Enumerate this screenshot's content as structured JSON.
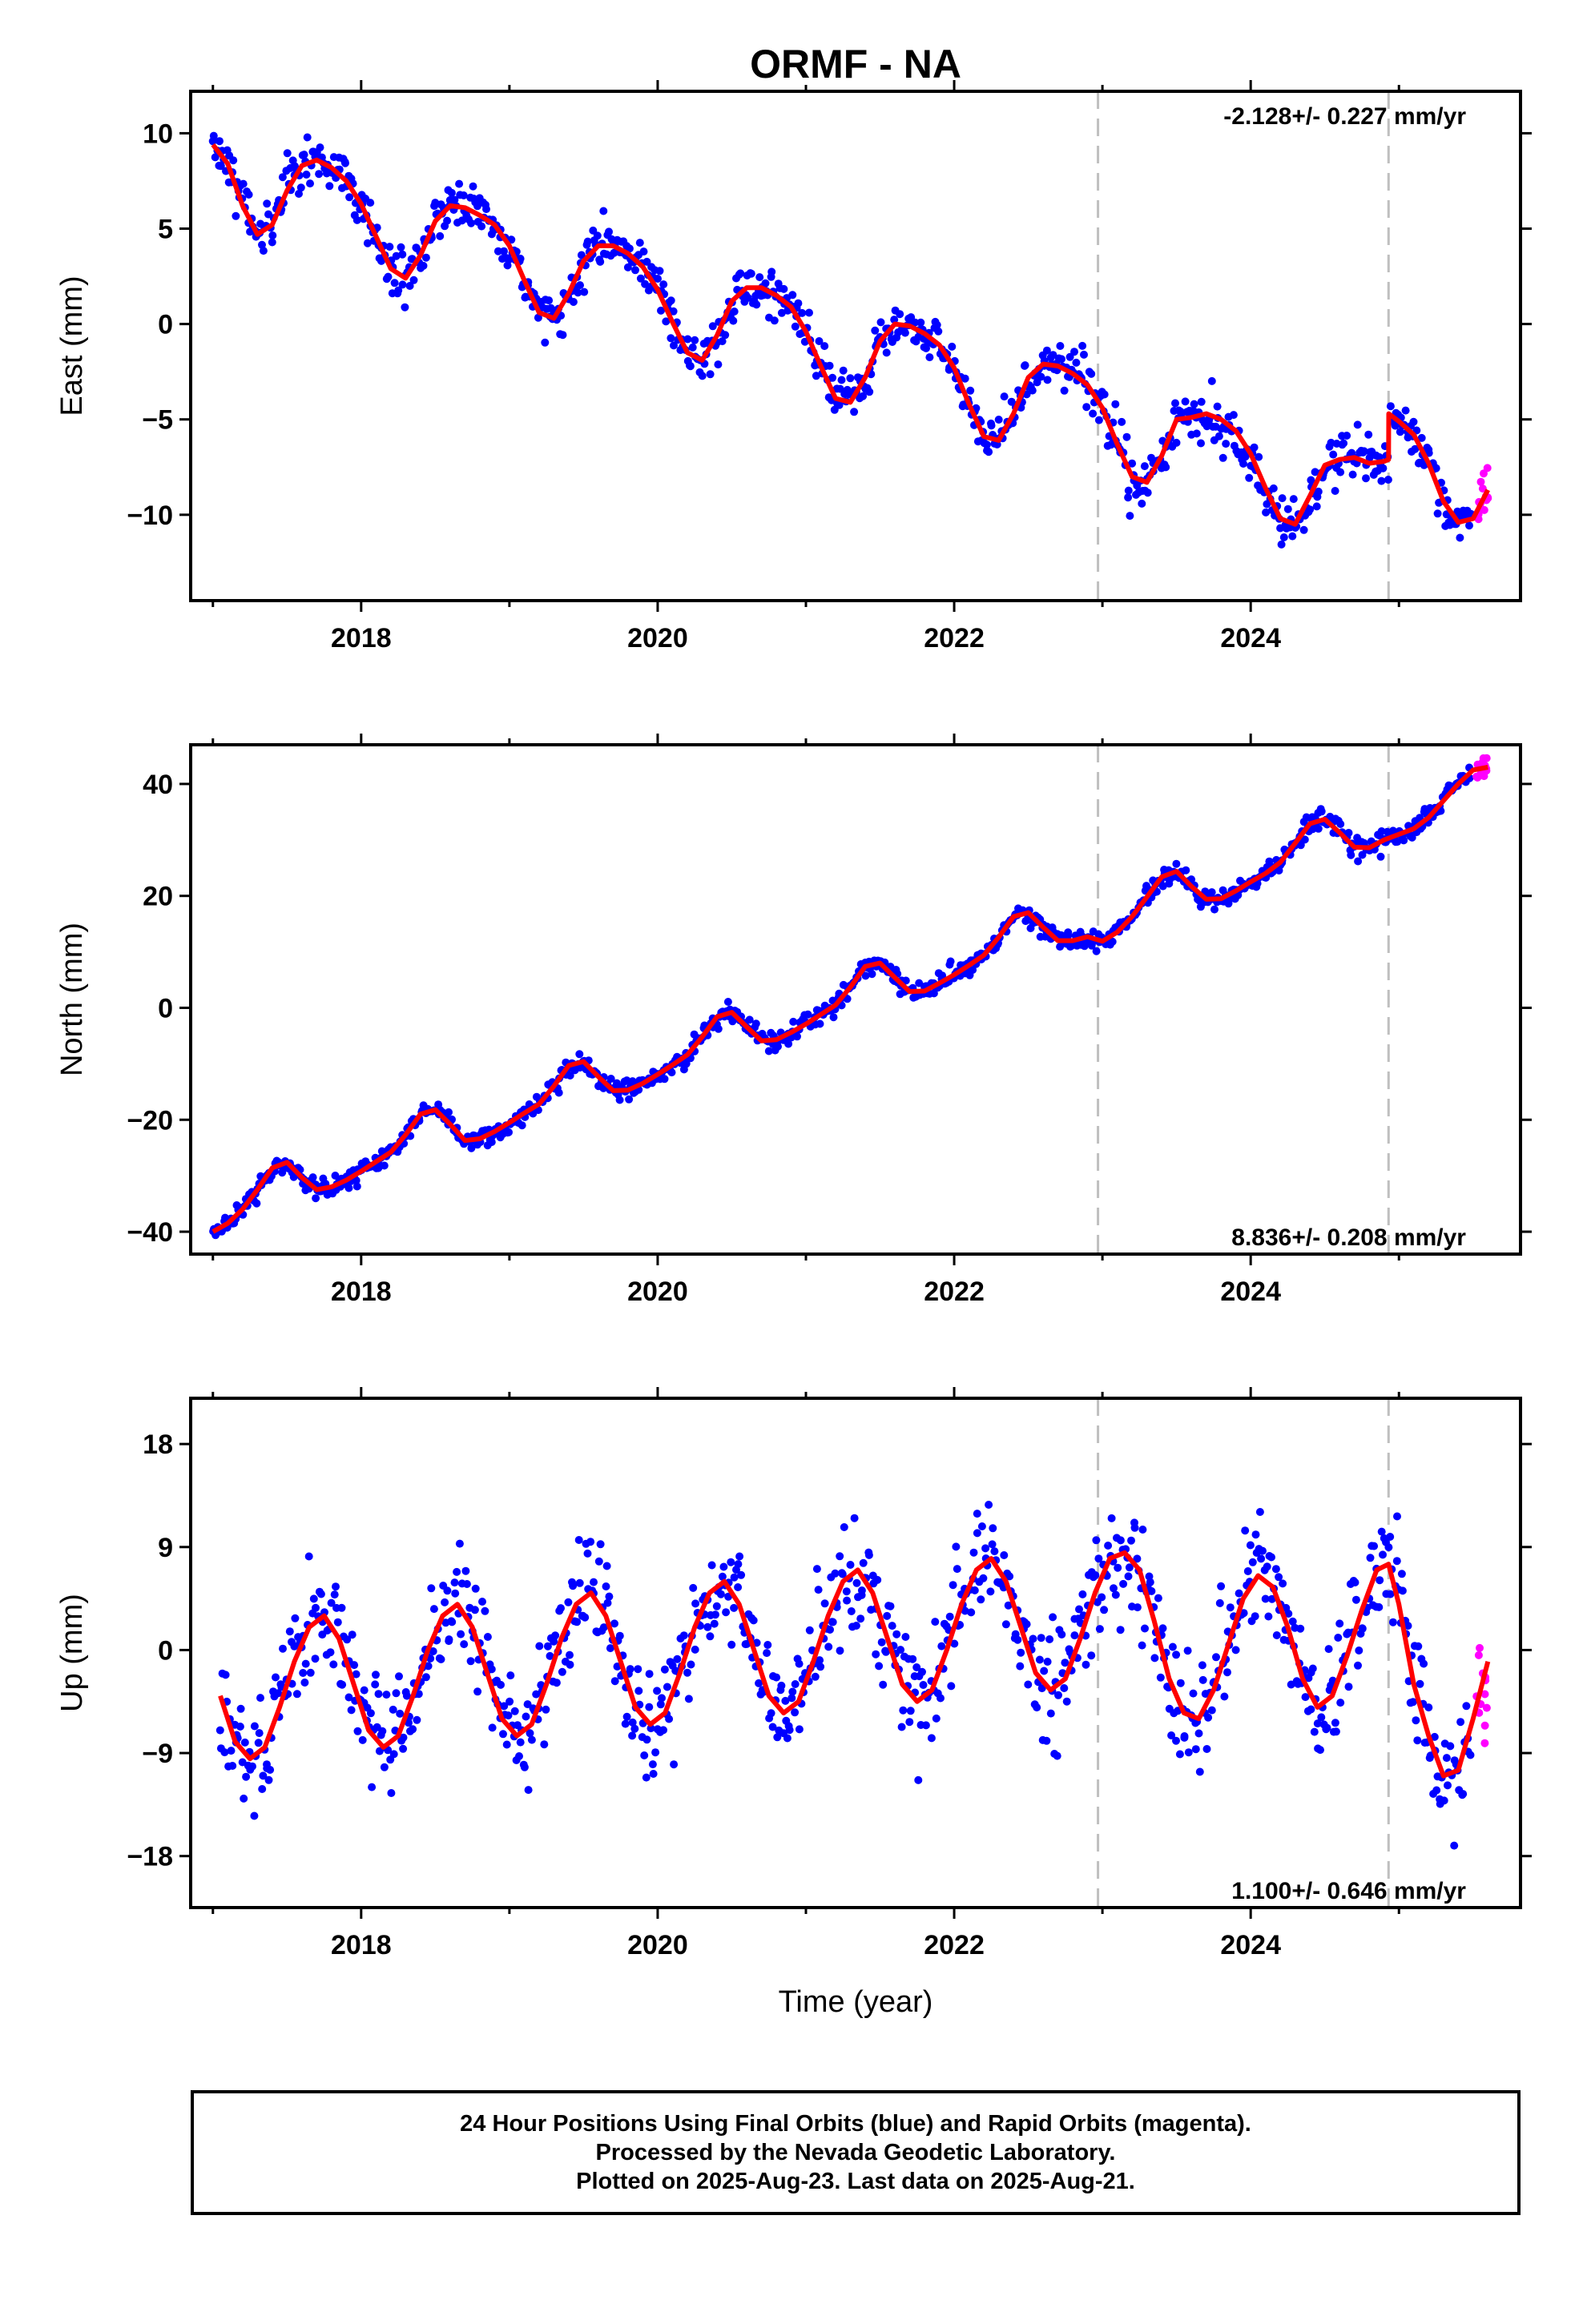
{
  "figure": {
    "title": "ORMF - NA",
    "xlabel": "Time (year)"
  },
  "colors": {
    "final_orbits": "#0000ff",
    "rapid_orbits": "#ff00ff",
    "model": "#ff0000",
    "break_lines": "#bfbfbf"
  },
  "chart_data": [
    {
      "type": "scatter",
      "panel": "east",
      "ylabel": "East (mm)",
      "rate_label": "-2.128+/- 0.227 mm/yr",
      "rate_value": -2.128,
      "rate_sigma": 0.227,
      "xlim": [
        2016.85,
        2025.82
      ],
      "ylim": [
        -14.5,
        12.2
      ],
      "xticks": [
        2018,
        2020,
        2022,
        2024
      ],
      "yticks": [
        10,
        5,
        0,
        -5,
        -10
      ],
      "ytick_labels": [
        "10",
        "5",
        "0",
        "−5",
        "−10"
      ],
      "breaks": [
        2022.97,
        2024.93
      ],
      "model": {
        "x": [
          2017.0,
          2017.1,
          2017.2,
          2017.3,
          2017.4,
          2017.5,
          2017.6,
          2017.7,
          2017.8,
          2017.9,
          2018.0,
          2018.1,
          2018.2,
          2018.3,
          2018.4,
          2018.5,
          2018.6,
          2018.7,
          2018.8,
          2018.9,
          2019.0,
          2019.1,
          2019.2,
          2019.3,
          2019.4,
          2019.5,
          2019.6,
          2019.7,
          2019.8,
          2019.9,
          2020.0,
          2020.1,
          2020.2,
          2020.3,
          2020.4,
          2020.5,
          2020.6,
          2020.7,
          2020.8,
          2020.9,
          2021.0,
          2021.1,
          2021.2,
          2021.3,
          2021.4,
          2021.5,
          2021.6,
          2021.7,
          2021.8,
          2021.9,
          2022.0,
          2022.1,
          2022.2,
          2022.3,
          2022.4,
          2022.5,
          2022.6,
          2022.7,
          2022.8,
          2022.9,
          2023.0,
          2023.1,
          2023.2,
          2023.3,
          2023.4,
          2023.5,
          2023.6,
          2023.7,
          2023.8,
          2023.9,
          2024.0,
          2024.1,
          2024.2,
          2024.3,
          2024.4,
          2024.5,
          2024.6,
          2024.7,
          2024.8,
          2024.9,
          2024.93,
          2024.931,
          2025.0,
          2025.1,
          2025.2,
          2025.3,
          2025.4,
          2025.5,
          2025.6
        ],
        "y": [
          9.4,
          8.4,
          6.2,
          4.7,
          5.2,
          7.0,
          8.3,
          8.6,
          8.2,
          7.5,
          6.3,
          4.6,
          2.9,
          2.4,
          3.6,
          5.4,
          6.2,
          6.1,
          5.7,
          5.2,
          4.1,
          2.3,
          0.6,
          0.3,
          1.6,
          3.3,
          4.1,
          4.1,
          3.7,
          3.0,
          1.8,
          0.1,
          -1.5,
          -1.9,
          -0.6,
          1.2,
          1.9,
          1.9,
          1.5,
          0.9,
          -0.4,
          -2.2,
          -3.9,
          -4.1,
          -2.8,
          -0.9,
          0.0,
          -0.1,
          -0.5,
          -1.1,
          -2.3,
          -4.2,
          -5.9,
          -6.1,
          -4.7,
          -2.8,
          -2.1,
          -2.2,
          -2.6,
          -3.2,
          -4.4,
          -6.3,
          -8.0,
          -8.3,
          -6.9,
          -5.0,
          -4.9,
          -4.7,
          -5.0,
          -5.6,
          -6.8,
          -8.6,
          -10.2,
          -10.5,
          -9.0,
          -7.4,
          -7.1,
          -7.0,
          -7.3,
          -7.2,
          -7.1,
          -4.7,
          -5.1,
          -5.8,
          -7.3,
          -9.3,
          -10.4,
          -10.2,
          -8.7
        ]
      }
    },
    {
      "type": "scatter",
      "panel": "north",
      "ylabel": "North (mm)",
      "rate_label": "8.836+/- 0.208 mm/yr",
      "rate_value": 8.836,
      "rate_sigma": 0.208,
      "xlim": [
        2016.85,
        2025.82
      ],
      "ylim": [
        -44,
        47
      ],
      "xticks": [
        2018,
        2020,
        2022,
        2024
      ],
      "yticks": [
        40,
        20,
        0,
        -20,
        -40
      ],
      "ytick_labels": [
        "40",
        "20",
        "0",
        "−20",
        "−40"
      ],
      "breaks": [
        2022.97,
        2024.93
      ],
      "model": {
        "x": [
          2017.0,
          2017.1,
          2017.2,
          2017.3,
          2017.4,
          2017.5,
          2017.6,
          2017.7,
          2017.8,
          2017.9,
          2018.0,
          2018.1,
          2018.2,
          2018.3,
          2018.4,
          2018.5,
          2018.6,
          2018.7,
          2018.8,
          2018.9,
          2019.0,
          2019.1,
          2019.2,
          2019.3,
          2019.4,
          2019.5,
          2019.6,
          2019.7,
          2019.8,
          2019.9,
          2020.0,
          2020.1,
          2020.2,
          2020.3,
          2020.4,
          2020.5,
          2020.6,
          2020.7,
          2020.8,
          2020.9,
          2021.0,
          2021.1,
          2021.2,
          2021.3,
          2021.4,
          2021.5,
          2021.6,
          2021.7,
          2021.8,
          2021.9,
          2022.0,
          2022.1,
          2022.2,
          2022.3,
          2022.4,
          2022.5,
          2022.6,
          2022.7,
          2022.8,
          2022.9,
          2023.0,
          2023.1,
          2023.2,
          2023.3,
          2023.4,
          2023.5,
          2023.6,
          2023.7,
          2023.8,
          2023.9,
          2024.0,
          2024.1,
          2024.2,
          2024.3,
          2024.4,
          2024.5,
          2024.6,
          2024.7,
          2024.8,
          2024.9,
          2025.0,
          2025.1,
          2025.2,
          2025.3,
          2025.4,
          2025.5,
          2025.6
        ],
        "y": [
          -40.0,
          -38.5,
          -36.0,
          -32.5,
          -28.6,
          -27.6,
          -30.3,
          -32.5,
          -32.0,
          -30.8,
          -29.2,
          -27.5,
          -25.8,
          -22.7,
          -19.0,
          -18.2,
          -20.8,
          -23.7,
          -23.4,
          -22.1,
          -20.5,
          -18.8,
          -17.2,
          -14.0,
          -10.3,
          -9.6,
          -12.3,
          -14.8,
          -14.7,
          -13.5,
          -11.9,
          -10.2,
          -8.4,
          -5.2,
          -1.6,
          -0.8,
          -3.4,
          -5.9,
          -5.7,
          -4.4,
          -2.9,
          -1.2,
          0.5,
          3.7,
          7.4,
          8.0,
          5.4,
          2.9,
          3.0,
          4.4,
          5.9,
          7.6,
          9.4,
          12.6,
          16.3,
          17.0,
          14.4,
          12.0,
          12.0,
          12.7,
          11.9,
          13.5,
          16.3,
          19.8,
          23.4,
          24.4,
          21.7,
          19.4,
          19.5,
          20.9,
          22.5,
          24.0,
          26.0,
          29.4,
          32.9,
          33.7,
          31.3,
          28.7,
          28.6,
          30.0,
          31.0,
          32.0,
          34.0,
          37.0,
          40.0,
          42.5,
          43.0
        ]
      }
    },
    {
      "type": "scatter",
      "panel": "up",
      "ylabel": "Up (mm)",
      "rate_label": "1.100+/- 0.646 mm/yr",
      "rate_value": 1.1,
      "rate_sigma": 0.646,
      "xlim": [
        2016.85,
        2025.82
      ],
      "ylim": [
        -22.5,
        22
      ],
      "xticks": [
        2018,
        2020,
        2022,
        2024
      ],
      "yticks": [
        18,
        9,
        0,
        -9,
        -18
      ],
      "ytick_labels": [
        "18",
        "9",
        "0",
        "−9",
        "−18"
      ],
      "breaks": [
        2022.97,
        2024.93
      ],
      "model": {
        "x": [
          2017.05,
          2017.15,
          2017.25,
          2017.35,
          2017.45,
          2017.55,
          2017.65,
          2017.75,
          2017.85,
          2017.95,
          2018.05,
          2018.15,
          2018.25,
          2018.35,
          2018.45,
          2018.55,
          2018.65,
          2018.75,
          2018.85,
          2018.95,
          2019.05,
          2019.15,
          2019.25,
          2019.35,
          2019.45,
          2019.55,
          2019.65,
          2019.75,
          2019.85,
          2019.95,
          2020.05,
          2020.15,
          2020.25,
          2020.35,
          2020.45,
          2020.55,
          2020.65,
          2020.75,
          2020.85,
          2020.95,
          2021.05,
          2021.15,
          2021.25,
          2021.35,
          2021.45,
          2021.55,
          2021.65,
          2021.75,
          2021.85,
          2021.95,
          2022.05,
          2022.15,
          2022.25,
          2022.35,
          2022.45,
          2022.55,
          2022.65,
          2022.75,
          2022.85,
          2022.95,
          2023.05,
          2023.15,
          2023.25,
          2023.35,
          2023.45,
          2023.55,
          2023.65,
          2023.75,
          2023.85,
          2023.95,
          2024.05,
          2024.15,
          2024.25,
          2024.35,
          2024.45,
          2024.55,
          2024.65,
          2024.75,
          2024.85,
          2024.93,
          2025.0,
          2025.1,
          2025.2,
          2025.3,
          2025.4,
          2025.5,
          2025.6
        ],
        "y": [
          -4.0,
          -8.0,
          -9.5,
          -8.5,
          -5.0,
          -1.0,
          2.0,
          3.0,
          1.0,
          -3.0,
          -7.0,
          -8.5,
          -7.5,
          -4.0,
          0.0,
          3.0,
          4.0,
          2.0,
          -2.0,
          -6.0,
          -7.5,
          -6.5,
          -3.0,
          1.0,
          4.0,
          5.0,
          3.0,
          -1.0,
          -5.0,
          -6.5,
          -5.5,
          -2.0,
          2.0,
          5.0,
          6.0,
          4.0,
          0.0,
          -4.0,
          -5.5,
          -4.5,
          -1.0,
          3.0,
          6.0,
          7.0,
          5.0,
          1.0,
          -3.0,
          -4.5,
          -3.5,
          0.0,
          4.0,
          7.0,
          8.0,
          6.0,
          2.0,
          -2.0,
          -3.5,
          -2.5,
          1.0,
          5.0,
          8.0,
          8.5,
          7.0,
          2.5,
          -2.5,
          -5.5,
          -6.0,
          -3.5,
          0.5,
          4.5,
          6.5,
          5.5,
          2.0,
          -2.5,
          -5.0,
          -4.0,
          -0.5,
          3.5,
          7.0,
          7.5,
          4.0,
          -3.0,
          -7.5,
          -11.0,
          -10.5,
          -6.0,
          -1.0
        ]
      }
    }
  ],
  "caption": {
    "line1": "24 Hour Positions Using Final Orbits (blue) and Rapid Orbits (magenta).",
    "line2": "Processed by the Nevada Geodetic Laboratory.",
    "line3": "Plotted on 2025-Aug-23. Last data on 2025-Aug-21."
  }
}
